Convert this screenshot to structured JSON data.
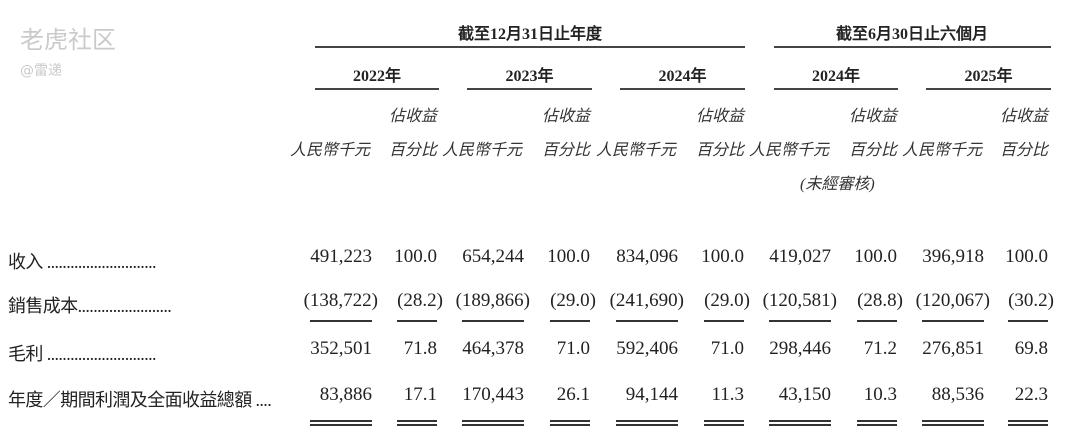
{
  "header": {
    "annual_group": "截至12月31日止年度",
    "interim_group": "截至6月30日止六個月",
    "years": [
      "2022年",
      "2023年",
      "2024年",
      "2024年",
      "2025年"
    ],
    "col_rmb": "人民幣千元",
    "col_pct_line1": "佔收益",
    "col_pct_line2": "百分比",
    "unaudited": "(未經審核)"
  },
  "rows": [
    {
      "label": "收入 ............................",
      "values": [
        "491,223",
        "100.0",
        "654,244",
        "100.0",
        "834,096",
        "100.0",
        "419,027",
        "100.0",
        "396,918",
        "100.0"
      ]
    },
    {
      "label": "銷售成本........................",
      "values": [
        "(138,722)",
        "(28.2)",
        "(189,866)",
        "(29.0)",
        "(241,690)",
        "(29.0)",
        "(120,581)",
        "(28.8)",
        "(120,067)",
        "(30.2)"
      ]
    },
    {
      "label": "毛利 ............................",
      "values": [
        "352,501",
        "71.8",
        "464,378",
        "71.0",
        "592,406",
        "71.0",
        "298,446",
        "71.2",
        "276,851",
        "69.8"
      ]
    },
    {
      "label": "年度／期間利潤及全面收益總額 ....",
      "values": [
        "83,886",
        "17.1",
        "170,443",
        "26.1",
        "94,144",
        "11.3",
        "43,150",
        "10.3",
        "88,536",
        "22.3"
      ]
    }
  ],
  "watermark": {
    "text": "老虎社区",
    "source": "@雷递"
  }
}
